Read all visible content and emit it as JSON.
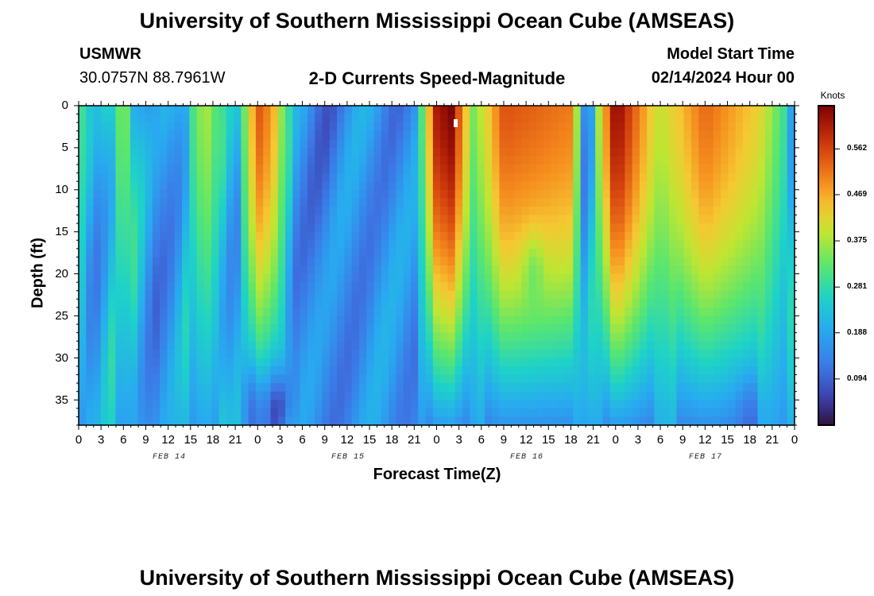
{
  "header": {
    "title": "University of Southern Mississippi Ocean Cube (AMSEAS)",
    "station_name": "USMWR",
    "station_coords": "30.0757N  88.7961W",
    "chart_heading": "2-D Currents Speed-Magnitude",
    "model_start_label": "Model Start Time",
    "model_start_value": "02/14/2024 Hour 00"
  },
  "footer": {
    "title": "University of Southern Mississippi Ocean Cube (AMSEAS)"
  },
  "chart_data": {
    "type": "heatmap",
    "title": "2-D Currents Speed-Magnitude",
    "xlabel": "Forecast Time(Z)",
    "ylabel": "Depth (ft)",
    "x_range_hours": [
      0,
      96
    ],
    "y_range_ft": [
      0,
      38
    ],
    "x_tick_labels": [
      "0",
      "3",
      "6",
      "9",
      "12",
      "15",
      "18",
      "21",
      "0",
      "3",
      "6",
      "9",
      "12",
      "15",
      "18",
      "21",
      "0",
      "3",
      "6",
      "9",
      "12",
      "15",
      "18",
      "21",
      "0",
      "3",
      "6",
      "9",
      "12",
      "15",
      "18",
      "21",
      "0"
    ],
    "date_labels": [
      "FEB 14",
      "FEB 15",
      "FEB 16",
      "FEB 17"
    ],
    "y_ticks": [
      0,
      5,
      10,
      15,
      20,
      25,
      30,
      35
    ],
    "colorbar": {
      "title": "Knots",
      "range": [
        0.0,
        0.65
      ],
      "tick_values": [
        0.562,
        0.469,
        0.375,
        0.281,
        0.188,
        0.094
      ],
      "tick_labels": [
        "0.562",
        "0.469",
        "0.375",
        "0.281",
        "0.188",
        "0.094"
      ]
    },
    "surface_speed_knots_by_hour": [
      {
        "hour": 0,
        "value": 0.3
      },
      {
        "hour": 2,
        "value": 0.12
      },
      {
        "hour": 6,
        "value": 0.32
      },
      {
        "hour": 10,
        "value": 0.1
      },
      {
        "hour": 13,
        "value": 0.15
      },
      {
        "hour": 17,
        "value": 0.35
      },
      {
        "hour": 21,
        "value": 0.14
      },
      {
        "hour": 24,
        "value": 0.52
      },
      {
        "hour": 26,
        "value": 0.45
      },
      {
        "hour": 29,
        "value": 0.13
      },
      {
        "hour": 33,
        "value": 0.1
      },
      {
        "hour": 40,
        "value": 0.14
      },
      {
        "hour": 45,
        "value": 0.12
      },
      {
        "hour": 48,
        "value": 0.58
      },
      {
        "hour": 50,
        "value": 0.62
      },
      {
        "hour": 53,
        "value": 0.3
      },
      {
        "hour": 57,
        "value": 0.52
      },
      {
        "hour": 66,
        "value": 0.48
      },
      {
        "hour": 68,
        "value": 0.12
      },
      {
        "hour": 72,
        "value": 0.62
      },
      {
        "hour": 78,
        "value": 0.35
      },
      {
        "hour": 84,
        "value": 0.5
      },
      {
        "hour": 91,
        "value": 0.4
      },
      {
        "hour": 96,
        "value": 0.2
      }
    ],
    "notes": "Values estimated from color scale; deep layer speeds lower, minimum ~0.02 knots near hour 27 at depth 35 ft."
  }
}
